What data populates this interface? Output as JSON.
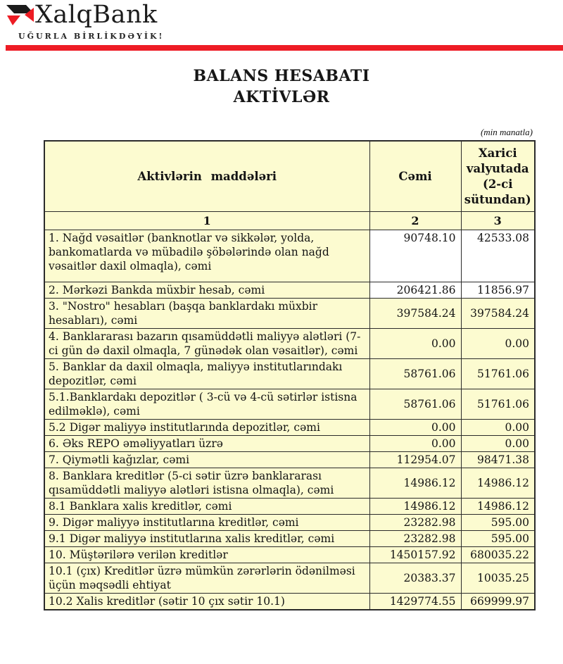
{
  "brand": {
    "name": "XalqBank",
    "tagline": "UĞURLA BİRLİKDƏYİK!",
    "logo_mark": "xalqbank-x-mark",
    "colors": {
      "red": "#ee1c25",
      "black": "#1c1c1c"
    }
  },
  "title": {
    "line1": "BALANS HESABATI",
    "line2": "AKTİVLƏR"
  },
  "note": "(min manatla)",
  "table": {
    "header": {
      "col1": "Aktivlərin maddələri",
      "col2": "Cəmi",
      "col3": "Xarici valyutada (2-ci sütundan)"
    },
    "index_row": [
      "1",
      "2",
      "3"
    ],
    "colors": {
      "cell_yellow": "#fcfbd0",
      "cell_white": "#ffffff",
      "border": "#2b2b2b"
    },
    "rows": [
      {
        "label": "1. Nağd vəsaitlər (banknotlar və sikkələr, yolda, bankomatlarda və mübadilə şöbələrində olan nağd vəsaitlər daxil olmaqla), cəmi",
        "total": "90748.10",
        "foreign": "42533.08",
        "value_bg": "white",
        "tall": true
      },
      {
        "label": "2. Mərkəzi Bankda müxbir hesab, cəmi",
        "total": "206421.86",
        "foreign": "11856.97",
        "value_bg": "white",
        "tall": false
      },
      {
        "label": "3. \"Nostro\" hesabları (başqa banklardakı müxbir hesabları), cəmi",
        "total": "397584.24",
        "foreign": "397584.24",
        "value_bg": "yellow",
        "tall": false
      },
      {
        "label": "4. Banklararası bazarın qısamüddətli maliyyə alətləri (7-ci gün də daxil olmaqla, 7 günədək olan vəsaitlər), cəmi",
        "total": "0.00",
        "foreign": "0.00",
        "value_bg": "yellow",
        "tall": false
      },
      {
        "label": "5. Banklar da daxil olmaqla, maliyyə institutlarındakı depozitlər, cəmi",
        "total": "58761.06",
        "foreign": "51761.06",
        "value_bg": "yellow",
        "tall": false
      },
      {
        "label": "5.1.Banklardakı depozitlər ( 3-cü və 4-cü sətirlər istisna edilməklə), cəmi",
        "total": "58761.06",
        "foreign": "51761.06",
        "value_bg": "yellow",
        "tall": false
      },
      {
        "label": "5.2 Digər maliyyə institutlarında depozitlər, cəmi",
        "total": "0.00",
        "foreign": "0.00",
        "value_bg": "yellow",
        "tall": false
      },
      {
        "label": "6. Əks REPO əməliyyatları üzrə",
        "total": "0.00",
        "foreign": "0.00",
        "value_bg": "yellow",
        "tall": false
      },
      {
        "label": "7. Qiymətli kağızlar, cəmi",
        "total": "112954.07",
        "foreign": "98471.38",
        "value_bg": "yellow",
        "tall": false
      },
      {
        "label": "8. Banklara kreditlər (5-ci sətir üzrə banklararası qısamüddətli maliyyə alətləri istisna olmaqla), cəmi",
        "total": "14986.12",
        "foreign": "14986.12",
        "value_bg": "yellow",
        "tall": false
      },
      {
        "label": "8.1 Banklara xalis kreditlər, cəmi",
        "total": "14986.12",
        "foreign": "14986.12",
        "value_bg": "yellow",
        "tall": false
      },
      {
        "label": "9. Digər maliyyə institutlarına kreditlər, cəmi",
        "total": "23282.98",
        "foreign": "595.00",
        "value_bg": "yellow",
        "tall": false
      },
      {
        "label": "9.1 Digər maliyyə institutlarına xalis kreditlər, cəmi",
        "total": "23282.98",
        "foreign": "595.00",
        "value_bg": "yellow",
        "tall": false
      },
      {
        "label": "10. Müştərilərə verilən kreditlər",
        "total": "1450157.92",
        "foreign": "680035.22",
        "value_bg": "yellow",
        "tall": false
      },
      {
        "label": "10.1 (çıx) Kreditlər üzrə mümkün zərərlərin ödənilməsi üçün məqsədli ehtiyat",
        "total": "20383.37",
        "foreign": "10035.25",
        "value_bg": "yellow",
        "tall": false
      },
      {
        "label": "10.2 Xalis kreditlər (sətir 10 çıx sətir 10.1)",
        "total": "1429774.55",
        "foreign": "669999.97",
        "value_bg": "yellow",
        "tall": false
      }
    ]
  }
}
